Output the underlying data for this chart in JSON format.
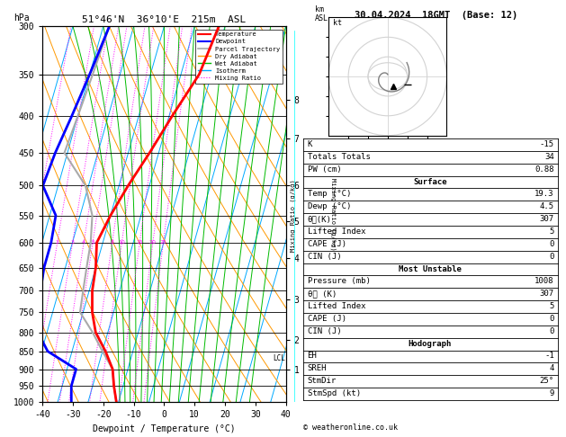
{
  "title_left": "51°46'N  36°10'E  215m  ASL",
  "title_right": "30.04.2024  18GMT  (Base: 12)",
  "xlabel": "Dewpoint / Temperature (°C)",
  "pressure_levels": [
    300,
    350,
    400,
    450,
    500,
    550,
    600,
    650,
    700,
    750,
    800,
    850,
    900,
    950,
    1000
  ],
  "temp_x": [
    18,
    16,
    11,
    7,
    3,
    0,
    -2,
    0,
    1,
    3,
    6,
    11,
    15,
    17,
    19.3
  ],
  "temp_p": [
    300,
    350,
    400,
    450,
    500,
    550,
    600,
    650,
    700,
    750,
    800,
    850,
    900,
    950,
    1000
  ],
  "dewp_x": [
    -18,
    -20,
    -22,
    -24,
    -25,
    -18,
    -17,
    -17,
    -16,
    -20,
    -13,
    -8,
    3,
    3,
    4.5
  ],
  "dewp_p": [
    300,
    350,
    400,
    450,
    500,
    550,
    600,
    650,
    700,
    750,
    800,
    850,
    900,
    950,
    1000
  ],
  "parcel_x": [
    -18,
    -19,
    -20,
    -21,
    -11,
    -6,
    -4,
    -3,
    -2,
    -1,
    5,
    10,
    15,
    17,
    19.3
  ],
  "parcel_p": [
    300,
    350,
    400,
    450,
    500,
    550,
    600,
    650,
    700,
    750,
    800,
    850,
    900,
    950,
    1000
  ],
  "temp_color": "#ff0000",
  "dewp_color": "#0000ff",
  "parcel_color": "#aaaaaa",
  "dry_adiabat_color": "#ff9900",
  "wet_adiabat_color": "#00bb00",
  "isotherm_color": "#00aaff",
  "mix_ratio_color": "#ff00ff",
  "background_color": "#ffffff",
  "pressure_min": 300,
  "pressure_max": 1000,
  "temp_min": -40,
  "temp_max": 40,
  "mixing_ratio_values": [
    1,
    2,
    3,
    4,
    5,
    8,
    10,
    15,
    20,
    25
  ],
  "km_ticks": [
    1,
    2,
    3,
    4,
    5,
    6,
    7,
    8
  ],
  "km_pressures": [
    900,
    820,
    720,
    630,
    560,
    500,
    430,
    380
  ],
  "lcl_pressure": 870,
  "skew": 35,
  "stats": {
    "K": -15,
    "TotalsT": 34,
    "PW": 0.88,
    "SurfTemp": 19.3,
    "SurfDewp": 4.5,
    "ThetaE": 307,
    "LiftedIndex": 5,
    "CAPE": 0,
    "CIN": 0,
    "MU_Pressure": 1008,
    "MU_ThetaE": 307,
    "MU_LiftedIndex": 5,
    "MU_CAPE": 0,
    "MU_CIN": 0,
    "EH": -1,
    "SREH": 4,
    "StmDir": 25,
    "StmSpd": 9
  }
}
